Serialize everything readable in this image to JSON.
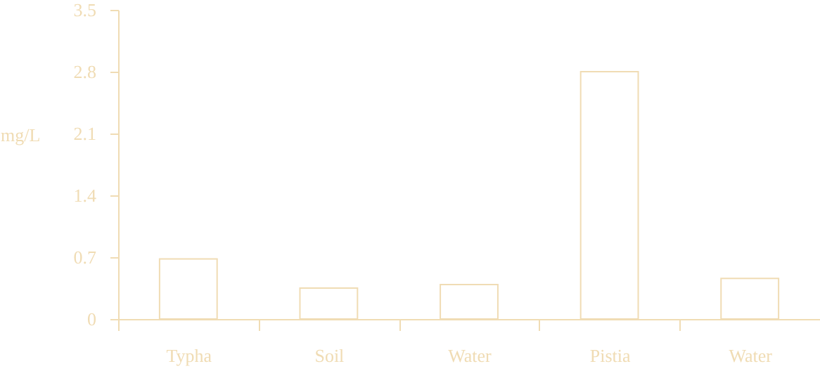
{
  "chart_data": {
    "type": "bar",
    "ylabel": "mg/L",
    "categories": [
      "Typha",
      "Soil",
      "Water",
      "Pistia",
      "Water"
    ],
    "values": [
      0.68,
      0.35,
      0.39,
      2.8,
      0.46
    ],
    "color": "#f0dcb4",
    "ylim": [
      0,
      3.5
    ],
    "yticks": [
      0,
      0.7,
      1.4,
      2.1,
      2.8,
      3.5
    ],
    "grid": false
  }
}
